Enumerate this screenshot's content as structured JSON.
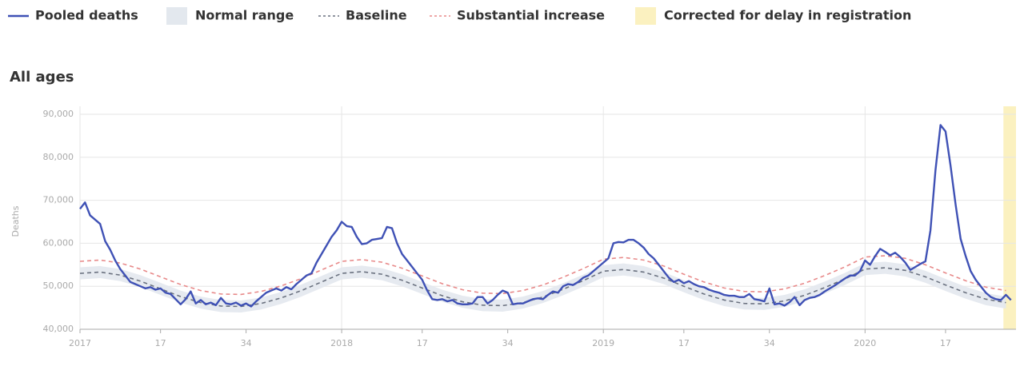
{
  "chart_data": {
    "type": "line",
    "subtitle": "All ages",
    "ylabel": "Deaths",
    "ylim": [
      40000,
      90000
    ],
    "yticks": [
      {
        "value": 40000,
        "label": "40,000"
      },
      {
        "value": 50000,
        "label": "50,000"
      },
      {
        "value": 60000,
        "label": "60,000"
      },
      {
        "value": 70000,
        "label": "70,000"
      },
      {
        "value": 80000,
        "label": "80,000"
      },
      {
        "value": 90000,
        "label": "90,000"
      }
    ],
    "xlim": [
      0,
      186
    ],
    "xticks": [
      {
        "value": 0,
        "label": "2017"
      },
      {
        "value": 16,
        "label": "17"
      },
      {
        "value": 33,
        "label": "34"
      },
      {
        "value": 52,
        "label": "2018"
      },
      {
        "value": 68,
        "label": "17"
      },
      {
        "value": 85,
        "label": "34"
      },
      {
        "value": 104,
        "label": "2019"
      },
      {
        "value": 120,
        "label": "17"
      },
      {
        "value": 137,
        "label": "34"
      },
      {
        "value": 156,
        "label": "2020"
      },
      {
        "value": 172,
        "label": "17"
      }
    ],
    "grid": true,
    "series": [
      {
        "name": "Pooled deaths",
        "color": "#3f51b5",
        "values": [
          68000,
          69500,
          66500,
          65500,
          64500,
          60500,
          58500,
          56000,
          54000,
          52500,
          51000,
          50500,
          50000,
          49500,
          49800,
          49200,
          49500,
          48500,
          48200,
          47000,
          45800,
          47000,
          48800,
          46000,
          46800,
          45800,
          46200,
          45600,
          47300,
          46000,
          45800,
          46200,
          45500,
          46000,
          45300,
          46500,
          47500,
          48500,
          49000,
          49500,
          49000,
          49800,
          49300,
          50500,
          51500,
          52500,
          53000,
          55500,
          57500,
          59500,
          61500,
          63000,
          65000,
          64000,
          63800,
          61500,
          59800,
          60000,
          60800,
          61000,
          61200,
          63800,
          63500,
          60000,
          57500,
          56000,
          54500,
          53000,
          51500,
          49000,
          47000,
          46800,
          47000,
          46500,
          46800,
          46000,
          45800,
          45800,
          46000,
          47500,
          47500,
          46000,
          46800,
          48000,
          49000,
          48500,
          45800,
          46000,
          46000,
          46500,
          47000,
          47200,
          47000,
          48000,
          48800,
          48500,
          50000,
          50500,
          50300,
          51000,
          52000,
          52500,
          53500,
          54500,
          55500,
          56500,
          60000,
          60300,
          60200,
          60800,
          60800,
          60000,
          59000,
          57500,
          56500,
          55000,
          53500,
          52000,
          51000,
          51500,
          50700,
          51200,
          50500,
          50000,
          49800,
          49200,
          48800,
          48500,
          48000,
          47800,
          47800,
          47500,
          47500,
          48200,
          47000,
          46800,
          46500,
          49500,
          45800,
          46000,
          45500,
          46300,
          47500,
          45600,
          46800,
          47300,
          47500,
          48000,
          48800,
          49500,
          50200,
          51000,
          51800,
          52500,
          52500,
          53500,
          56000,
          55000,
          57000,
          58700,
          58000,
          57200,
          57800,
          56800,
          55500,
          53800,
          54500,
          55200,
          55800,
          63000,
          77000,
          87500,
          86000,
          78000,
          69000,
          61000,
          57000,
          53500,
          51500,
          50000,
          48500,
          47500,
          47000,
          46800,
          48000,
          46800
        ]
      },
      {
        "name": "Baseline",
        "color": "#6b7280",
        "dash": true,
        "x": [
          0,
          4,
          8,
          12,
          16,
          20,
          24,
          28,
          32,
          36,
          40,
          44,
          48,
          52,
          56,
          60,
          64,
          68,
          72,
          76,
          80,
          84,
          88,
          92,
          96,
          100,
          104,
          108,
          112,
          116,
          120,
          124,
          128,
          132,
          136,
          140,
          144,
          148,
          152,
          156,
          160,
          164,
          168,
          172,
          176,
          180,
          184
        ],
        "values": [
          53000,
          53300,
          52600,
          51200,
          49400,
          47600,
          46200,
          45400,
          45300,
          46000,
          47300,
          49000,
          51000,
          53000,
          53400,
          52800,
          51400,
          49600,
          47800,
          46400,
          45600,
          45500,
          46200,
          47500,
          49300,
          51300,
          53500,
          53900,
          53300,
          51900,
          50000,
          48200,
          46800,
          46000,
          45900,
          46600,
          47900,
          49700,
          51700,
          54000,
          54300,
          53700,
          52200,
          50300,
          48500,
          47000,
          46200
        ]
      },
      {
        "name": "Substantial increase",
        "color": "#e88a8a",
        "dash": true,
        "x": [
          0,
          4,
          8,
          12,
          16,
          20,
          24,
          28,
          32,
          36,
          40,
          44,
          48,
          52,
          56,
          60,
          64,
          68,
          72,
          76,
          80,
          84,
          88,
          92,
          96,
          100,
          104,
          108,
          112,
          116,
          120,
          124,
          128,
          132,
          136,
          140,
          144,
          148,
          152,
          156,
          160,
          164,
          168,
          172,
          176,
          180,
          184
        ],
        "values": [
          55800,
          56100,
          55400,
          54000,
          52200,
          50400,
          49000,
          48200,
          48100,
          48800,
          50100,
          51800,
          53800,
          55800,
          56200,
          55600,
          54200,
          52400,
          50600,
          49200,
          48400,
          48300,
          49000,
          50300,
          52100,
          54100,
          56300,
          56700,
          56100,
          54700,
          52800,
          51000,
          49600,
          48800,
          48700,
          49400,
          50700,
          52500,
          54500,
          56800,
          57100,
          56500,
          55000,
          53100,
          51300,
          49800,
          49000
        ]
      }
    ],
    "band": {
      "name": "Normal range",
      "color": "#e3e8ee",
      "x": [
        0,
        4,
        8,
        12,
        16,
        20,
        24,
        28,
        32,
        36,
        40,
        44,
        48,
        52,
        56,
        60,
        64,
        68,
        72,
        76,
        80,
        84,
        88,
        92,
        96,
        100,
        104,
        108,
        112,
        116,
        120,
        124,
        128,
        132,
        136,
        140,
        144,
        148,
        152,
        156,
        160,
        164,
        168,
        172,
        176,
        180,
        184
      ],
      "lower": [
        51600,
        51900,
        51200,
        49800,
        48000,
        46200,
        44800,
        44000,
        43900,
        44600,
        45900,
        47600,
        49600,
        51600,
        52000,
        51400,
        50000,
        48200,
        46400,
        45000,
        44200,
        44100,
        44800,
        46100,
        47900,
        49900,
        52100,
        52500,
        51900,
        50500,
        48600,
        46800,
        45400,
        44600,
        44500,
        45200,
        46500,
        48300,
        50300,
        52600,
        52900,
        52300,
        50800,
        48900,
        47100,
        45600,
        44800
      ],
      "upper": [
        54400,
        54700,
        54000,
        52600,
        50800,
        49000,
        47600,
        46800,
        46700,
        47400,
        48700,
        50400,
        52400,
        54400,
        54800,
        54200,
        52800,
        51000,
        49200,
        47800,
        47000,
        46900,
        47600,
        48900,
        50700,
        52700,
        54900,
        55300,
        54700,
        53300,
        51400,
        49600,
        48200,
        47400,
        47300,
        48000,
        49300,
        51100,
        53100,
        55400,
        55700,
        55100,
        53600,
        51700,
        49900,
        48400,
        47600
      ]
    },
    "highlight": {
      "name": "Corrected for delay in registration",
      "color": "#fbf1c0",
      "xrange": [
        183.5,
        186
      ]
    }
  }
}
